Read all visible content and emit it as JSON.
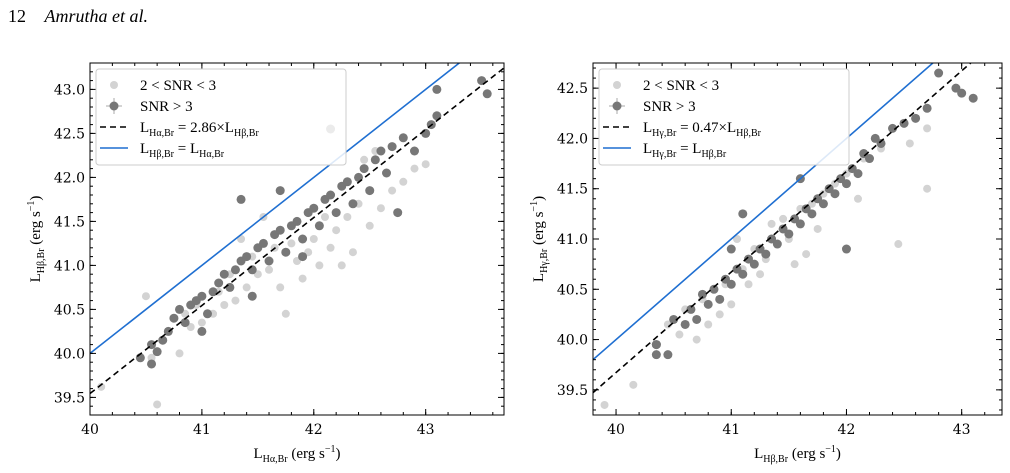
{
  "header": {
    "page_number": "12",
    "authors": "Amrutha et al."
  },
  "colors": {
    "snr_low": "#d3d3d3",
    "snr_high": "#777777",
    "fit": "#000000",
    "equality": "#1f6fd1"
  },
  "chart_data": [
    {
      "type": "scatter",
      "xlabel_html": "L<tspan font-size='10' dy='4'>Hα,Br</tspan><tspan dy='-4'> (erg s</tspan><tspan font-size='10' dy='-6'>−1</tspan><tspan dy='6'>)</tspan>",
      "ylabel_html": "L<tspan font-size='10' dy='4'>Hβ,Br</tspan><tspan dy='-4'> (erg s</tspan><tspan font-size='10' dy='-6'>−1</tspan><tspan dy='6'>)</tspan>",
      "xlim": [
        40.0,
        43.7
      ],
      "ylim": [
        39.3,
        43.3
      ],
      "xticks": [
        40,
        41,
        42,
        43
      ],
      "yticks": [
        39.5,
        40.0,
        40.5,
        41.0,
        41.5,
        42.0,
        42.5,
        43.0
      ],
      "legend_position": "top-left",
      "legend": [
        {
          "kind": "low",
          "label_html": "2 &lt; SNR &lt; 3"
        },
        {
          "kind": "high",
          "label_html": "SNR &gt; 3"
        },
        {
          "kind": "fit",
          "label_html": "L<tspan font-size='10' dy='4'>Hα,Br</tspan><tspan dy='-4'> = 2.86×L</tspan><tspan font-size='10' dy='4'>Hβ,Br</tspan>"
        },
        {
          "kind": "eq",
          "label_html": "L<tspan font-size='10' dy='4'>Hβ,Br</tspan><tspan dy='-4'> = L</tspan><tspan font-size='10' dy='4'>Hα,Br</tspan>"
        }
      ],
      "lines": [
        {
          "kind": "fit",
          "slope": 1,
          "intercept": -0.456
        },
        {
          "kind": "eq",
          "slope": 1,
          "intercept": 0.0
        }
      ],
      "series": [
        {
          "name": "2 < SNR < 3",
          "kind": "low",
          "points": [
            [
              40.1,
              39.62
            ],
            [
              40.6,
              39.42
            ],
            [
              40.5,
              40.65
            ],
            [
              40.55,
              39.95
            ],
            [
              40.8,
              40.0
            ],
            [
              40.85,
              40.45
            ],
            [
              40.9,
              40.3
            ],
            [
              41.0,
              40.35
            ],
            [
              41.1,
              40.45
            ],
            [
              41.2,
              40.55
            ],
            [
              41.25,
              40.9
            ],
            [
              41.3,
              40.6
            ],
            [
              41.35,
              41.3
            ],
            [
              41.4,
              40.75
            ],
            [
              41.45,
              41.1
            ],
            [
              41.5,
              40.9
            ],
            [
              41.55,
              41.55
            ],
            [
              41.6,
              40.95
            ],
            [
              41.7,
              40.75
            ],
            [
              41.75,
              40.45
            ],
            [
              41.8,
              41.25
            ],
            [
              41.85,
              41.05
            ],
            [
              41.9,
              40.85
            ],
            [
              41.95,
              41.15
            ],
            [
              42.0,
              41.3
            ],
            [
              42.05,
              41.0
            ],
            [
              42.1,
              41.55
            ],
            [
              42.15,
              41.2
            ],
            [
              42.2,
              41.4
            ],
            [
              42.3,
              41.55
            ],
            [
              42.35,
              41.15
            ],
            [
              42.4,
              41.7
            ],
            [
              42.5,
              41.45
            ],
            [
              42.6,
              41.65
            ],
            [
              42.7,
              41.85
            ],
            [
              42.8,
              41.95
            ],
            [
              42.9,
              42.1
            ],
            [
              43.0,
              42.15
            ],
            [
              42.55,
              42.3
            ],
            [
              42.25,
              41.0
            ],
            [
              41.65,
              41.2
            ],
            [
              41.15,
              40.7
            ],
            [
              40.95,
              40.55
            ],
            [
              42.45,
              42.2
            ]
          ]
        },
        {
          "name": "SNR > 3",
          "kind": "high",
          "points": [
            [
              40.55,
              39.88
            ],
            [
              40.55,
              40.1
            ],
            [
              40.6,
              40.02
            ],
            [
              40.65,
              40.15
            ],
            [
              40.7,
              40.25
            ],
            [
              40.75,
              40.4
            ],
            [
              40.8,
              40.5
            ],
            [
              40.85,
              40.35
            ],
            [
              40.9,
              40.55
            ],
            [
              40.95,
              40.6
            ],
            [
              41.0,
              40.65
            ],
            [
              41.0,
              40.25
            ],
            [
              41.05,
              40.45
            ],
            [
              41.1,
              40.7
            ],
            [
              41.15,
              40.8
            ],
            [
              41.2,
              40.9
            ],
            [
              41.25,
              40.75
            ],
            [
              41.3,
              40.95
            ],
            [
              41.35,
              41.05
            ],
            [
              41.4,
              41.1
            ],
            [
              41.45,
              40.95
            ],
            [
              41.5,
              41.2
            ],
            [
              41.55,
              41.25
            ],
            [
              41.6,
              41.05
            ],
            [
              41.65,
              41.35
            ],
            [
              41.7,
              41.4
            ],
            [
              41.75,
              41.15
            ],
            [
              41.8,
              41.45
            ],
            [
              41.85,
              41.5
            ],
            [
              41.9,
              41.3
            ],
            [
              41.95,
              41.6
            ],
            [
              42.0,
              41.65
            ],
            [
              42.05,
              41.45
            ],
            [
              42.1,
              41.75
            ],
            [
              42.15,
              41.8
            ],
            [
              42.2,
              41.6
            ],
            [
              42.25,
              41.9
            ],
            [
              42.3,
              41.95
            ],
            [
              42.35,
              41.7
            ],
            [
              42.4,
              42.0
            ],
            [
              42.45,
              42.1
            ],
            [
              42.5,
              41.85
            ],
            [
              42.55,
              42.2
            ],
            [
              42.6,
              42.3
            ],
            [
              42.65,
              42.05
            ],
            [
              42.7,
              42.35
            ],
            [
              42.8,
              42.45
            ],
            [
              42.9,
              42.3
            ],
            [
              43.0,
              42.5
            ],
            [
              43.05,
              42.6
            ],
            [
              43.1,
              42.7
            ],
            [
              43.1,
              43.0
            ],
            [
              43.5,
              43.1
            ],
            [
              43.55,
              42.95
            ],
            [
              41.35,
              41.75
            ],
            [
              41.7,
              41.85
            ],
            [
              42.15,
              42.55
            ],
            [
              40.45,
              39.95
            ],
            [
              42.75,
              41.6
            ],
            [
              41.45,
              40.65
            ],
            [
              41.9,
              41.1
            ]
          ]
        }
      ]
    },
    {
      "type": "scatter",
      "xlabel_html": "L<tspan font-size='10' dy='4'>Hβ,Br</tspan><tspan dy='-4'> (erg s</tspan><tspan font-size='10' dy='-6'>−1</tspan><tspan dy='6'>)</tspan>",
      "ylabel_html": "L<tspan font-size='10' dy='4'>Hγ,Br</tspan><tspan dy='-4'> (erg s</tspan><tspan font-size='10' dy='-6'>−1</tspan><tspan dy='6'>)</tspan>",
      "xlim": [
        39.8,
        43.35
      ],
      "ylim": [
        39.25,
        42.75
      ],
      "xticks": [
        40,
        41,
        42,
        43
      ],
      "yticks": [
        39.5,
        40.0,
        40.5,
        41.0,
        41.5,
        42.0,
        42.5
      ],
      "legend_position": "top-left",
      "legend": [
        {
          "kind": "low",
          "label_html": "2 &lt; SNR &lt; 3"
        },
        {
          "kind": "high",
          "label_html": "SNR &gt; 3"
        },
        {
          "kind": "fit",
          "label_html": "L<tspan font-size='10' dy='4'>Hγ,Br</tspan><tspan dy='-4'> = 0.47×L</tspan><tspan font-size='10' dy='4'>Hβ,Br</tspan>"
        },
        {
          "kind": "eq",
          "label_html": "L<tspan font-size='10' dy='4'>Hγ,Br</tspan><tspan dy='-4'> = L</tspan><tspan font-size='10' dy='4'>Hβ,Br</tspan>"
        }
      ],
      "lines": [
        {
          "kind": "fit",
          "slope": 1,
          "intercept": -0.328
        },
        {
          "kind": "eq",
          "slope": 1,
          "intercept": 0.0
        }
      ],
      "series": [
        {
          "name": "2 < SNR < 3",
          "kind": "low",
          "points": [
            [
              39.9,
              39.35
            ],
            [
              40.15,
              39.55
            ],
            [
              40.45,
              40.15
            ],
            [
              40.6,
              40.3
            ],
            [
              40.7,
              40.0
            ],
            [
              40.75,
              40.4
            ],
            [
              40.8,
              40.15
            ],
            [
              40.9,
              40.25
            ],
            [
              40.95,
              40.55
            ],
            [
              41.0,
              40.35
            ],
            [
              41.1,
              40.7
            ],
            [
              41.15,
              40.55
            ],
            [
              41.2,
              40.9
            ],
            [
              41.25,
              40.65
            ],
            [
              41.3,
              40.8
            ],
            [
              41.35,
              41.15
            ],
            [
              41.4,
              40.95
            ],
            [
              41.45,
              41.2
            ],
            [
              41.5,
              41.0
            ],
            [
              41.6,
              41.3
            ],
            [
              41.65,
              40.85
            ],
            [
              41.7,
              41.35
            ],
            [
              41.75,
              41.1
            ],
            [
              41.8,
              41.45
            ],
            [
              41.9,
              41.55
            ],
            [
              42.0,
              41.65
            ],
            [
              42.1,
              41.4
            ],
            [
              42.15,
              41.8
            ],
            [
              42.3,
              41.9
            ],
            [
              42.45,
              40.95
            ],
            [
              42.55,
              41.95
            ],
            [
              42.7,
              42.1
            ],
            [
              42.7,
              41.5
            ],
            [
              41.05,
              41.0
            ],
            [
              40.55,
              40.05
            ],
            [
              41.55,
              40.75
            ]
          ]
        },
        {
          "name": "SNR > 3",
          "kind": "high",
          "points": [
            [
              40.35,
              39.95
            ],
            [
              40.35,
              39.85
            ],
            [
              40.45,
              39.85
            ],
            [
              40.5,
              40.2
            ],
            [
              40.6,
              40.15
            ],
            [
              40.65,
              40.3
            ],
            [
              40.7,
              40.2
            ],
            [
              40.75,
              40.45
            ],
            [
              40.8,
              40.35
            ],
            [
              40.85,
              40.5
            ],
            [
              40.9,
              40.4
            ],
            [
              40.95,
              40.6
            ],
            [
              41.0,
              40.55
            ],
            [
              41.05,
              40.7
            ],
            [
              41.1,
              40.65
            ],
            [
              41.15,
              40.8
            ],
            [
              41.2,
              40.75
            ],
            [
              41.25,
              40.9
            ],
            [
              41.3,
              40.85
            ],
            [
              41.35,
              41.0
            ],
            [
              41.4,
              40.95
            ],
            [
              41.45,
              41.1
            ],
            [
              41.5,
              41.05
            ],
            [
              41.55,
              41.2
            ],
            [
              41.6,
              41.15
            ],
            [
              41.65,
              41.3
            ],
            [
              41.7,
              41.25
            ],
            [
              41.75,
              41.4
            ],
            [
              41.8,
              41.35
            ],
            [
              41.85,
              41.5
            ],
            [
              41.9,
              41.45
            ],
            [
              41.95,
              41.6
            ],
            [
              42.0,
              41.55
            ],
            [
              42.05,
              41.7
            ],
            [
              42.1,
              41.65
            ],
            [
              42.15,
              41.85
            ],
            [
              42.2,
              41.8
            ],
            [
              42.25,
              42.0
            ],
            [
              42.3,
              41.95
            ],
            [
              42.4,
              42.1
            ],
            [
              42.5,
              42.15
            ],
            [
              42.6,
              42.2
            ],
            [
              42.7,
              42.3
            ],
            [
              42.8,
              42.65
            ],
            [
              42.95,
              42.5
            ],
            [
              43.0,
              42.45
            ],
            [
              43.1,
              42.4
            ],
            [
              41.0,
              40.9
            ],
            [
              41.1,
              41.25
            ],
            [
              41.6,
              41.6
            ],
            [
              42.0,
              40.9
            ],
            [
              40.35,
              39.95
            ]
          ]
        }
      ]
    }
  ]
}
